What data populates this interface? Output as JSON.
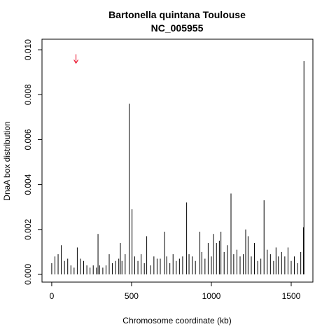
{
  "chart_data": {
    "type": "spike",
    "title": "Bartonella quintana Toulouse",
    "subtitle": "NC_005955",
    "x_label": "Chromosome coordinate (kb)",
    "y_label": "DnaA box distribution",
    "color": "#000000",
    "x": [
      0,
      20,
      40,
      60,
      80,
      100,
      120,
      140,
      160,
      180,
      200,
      220,
      240,
      260,
      280,
      290,
      300,
      320,
      340,
      360,
      380,
      400,
      420,
      430,
      440,
      460,
      485,
      503,
      520,
      540,
      560,
      580,
      595,
      620,
      640,
      660,
      680,
      707,
      720,
      740,
      760,
      780,
      800,
      820,
      845,
      860,
      880,
      900,
      928,
      940,
      960,
      980,
      1000,
      1013,
      1032,
      1050,
      1060,
      1080,
      1100,
      1123,
      1140,
      1160,
      1180,
      1200,
      1215,
      1230,
      1250,
      1270,
      1290,
      1310,
      1330,
      1350,
      1370,
      1390,
      1405,
      1420,
      1440,
      1460,
      1480,
      1500,
      1520,
      1540,
      1560,
      1577,
      1580
    ],
    "values": [
      0.0005,
      0.0008,
      0.0009,
      0.0013,
      0.0006,
      0.0007,
      0.0004,
      0.0003,
      0.0012,
      0.0007,
      0.0006,
      0.0004,
      0.0003,
      0.0004,
      0.0003,
      0.0018,
      0.0004,
      0.0003,
      0.0004,
      0.0009,
      0.0005,
      0.0006,
      0.0007,
      0.0014,
      0.0006,
      0.0009,
      0.0076,
      0.0029,
      0.0008,
      0.0006,
      0.0009,
      0.0005,
      0.0017,
      0.0004,
      0.0008,
      0.0007,
      0.0007,
      0.0019,
      0.0008,
      0.0005,
      0.0009,
      0.0006,
      0.0007,
      0.0008,
      0.0032,
      0.0009,
      0.0008,
      0.0006,
      0.0019,
      0.001,
      0.0007,
      0.0014,
      0.0008,
      0.0018,
      0.0014,
      0.0015,
      0.0019,
      0.001,
      0.0013,
      0.0036,
      0.0009,
      0.0011,
      0.0008,
      0.0009,
      0.002,
      0.0017,
      0.0008,
      0.0014,
      0.0006,
      0.0007,
      0.0033,
      0.0011,
      0.0009,
      0.0006,
      0.0012,
      0.0008,
      0.001,
      0.0008,
      0.0012,
      0.0006,
      0.0008,
      0.0005,
      0.001,
      0.0021,
      0.0095
    ],
    "marker": {
      "x": 152,
      "y_top": 0.0098,
      "y_bottom": 0.0094,
      "color": "#e8001c"
    },
    "xlim": [
      -61,
      1636
    ],
    "ylim": [
      -0.000343,
      0.01047
    ],
    "xticks": [
      0,
      500,
      1000,
      1500
    ],
    "yticks": [
      {
        "value": 0,
        "label": "0.000"
      },
      {
        "value": 0.002,
        "label": "0.002"
      },
      {
        "value": 0.004,
        "label": "0.004"
      },
      {
        "value": 0.006,
        "label": "0.006"
      },
      {
        "value": 0.008,
        "label": "0.008"
      },
      {
        "value": 0.01,
        "label": "0.010"
      }
    ]
  }
}
